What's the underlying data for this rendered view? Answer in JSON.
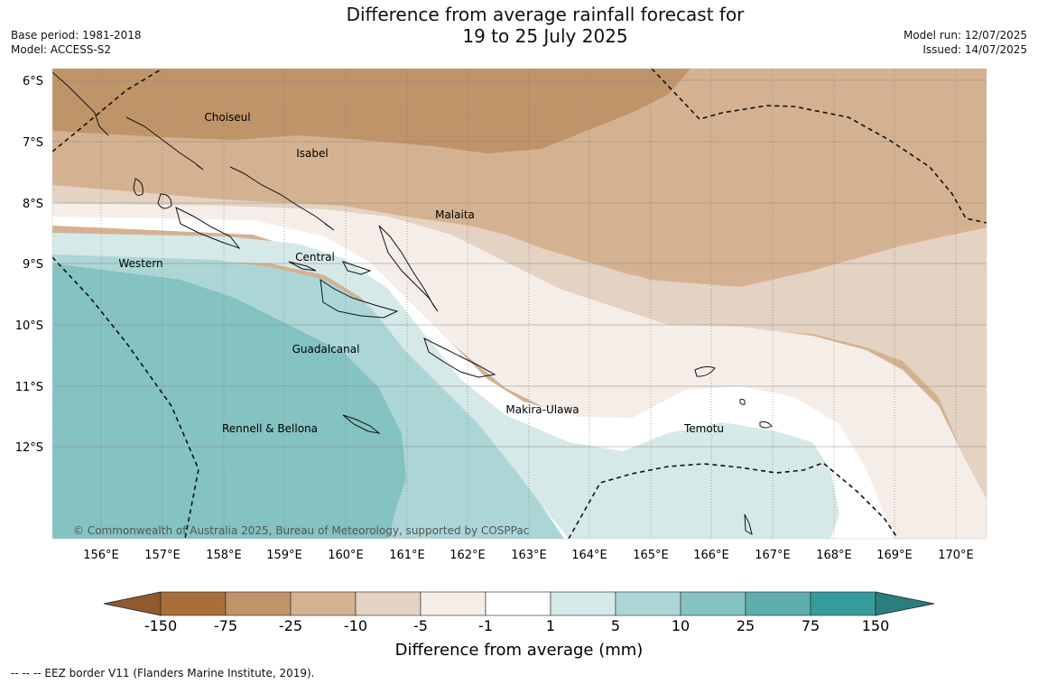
{
  "title": {
    "line1": "Difference from average rainfall forecast for",
    "line2": "19 to 25 July 2025"
  },
  "meta_left": {
    "base_period": "Base period: 1981-2018",
    "model": "Model: ACCESS-S2"
  },
  "meta_right": {
    "model_run": "Model run: 12/07/2025",
    "issued": "Issued: 14/07/2025"
  },
  "map": {
    "latitudes": [
      "6°S",
      "7°S",
      "8°S",
      "9°S",
      "10°S",
      "11°S",
      "12°S"
    ],
    "longitudes": [
      "156°E",
      "157°E",
      "158°E",
      "159°E",
      "160°E",
      "161°E",
      "162°E",
      "163°E",
      "164°E",
      "165°E",
      "166°E",
      "167°E",
      "168°E",
      "169°E",
      "170°E"
    ],
    "regions": [
      "Choiseul",
      "Isabel",
      "Malaita",
      "Western",
      "Central",
      "Guadalcanal",
      "Makira-Ulawa",
      "Temotu",
      "Rennell & Bellona"
    ],
    "copyright": "© Commonwealth of Australia 2025, Bureau of Meteorology, supported by COSPPac"
  },
  "colorbar": {
    "ticks": [
      "-150",
      "-75",
      "-25",
      "-10",
      "-5",
      "-1",
      "1",
      "5",
      "10",
      "25",
      "75",
      "150"
    ],
    "colors": [
      "#a86f3b",
      "#c09469",
      "#d4b291",
      "#e4d2c2",
      "#f5ede8",
      "#ffffff",
      "#d5e9e8",
      "#acd6d6",
      "#85c2c2",
      "#5eaeae",
      "#359c9c"
    ],
    "extend_low_color": "#8f5a2f",
    "extend_high_color": "#2a7e7e",
    "label": "Difference from average (mm)"
  },
  "eez_note": "--  --  -- EEZ border V11 (Flanders Marine Institute, 2019)."
}
